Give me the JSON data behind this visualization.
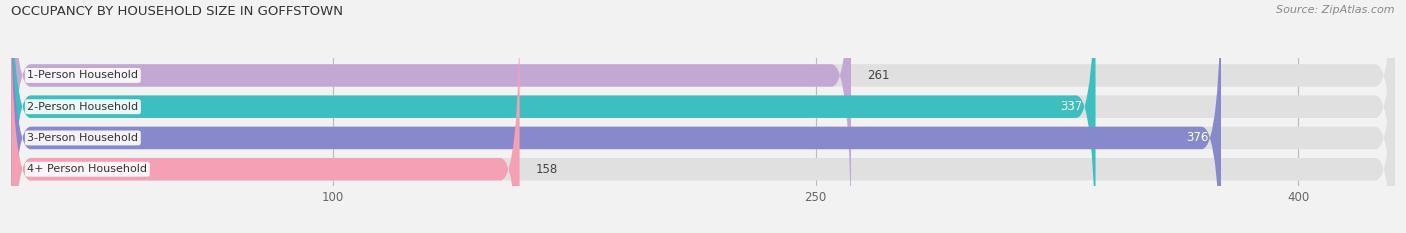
{
  "title": "OCCUPANCY BY HOUSEHOLD SIZE IN GOFFSTOWN",
  "source": "Source: ZipAtlas.com",
  "categories": [
    "1-Person Household",
    "2-Person Household",
    "3-Person Household",
    "4+ Person Household"
  ],
  "values": [
    261,
    337,
    376,
    158
  ],
  "bar_colors": [
    "#c4a8d4",
    "#3dbfbf",
    "#8888cc",
    "#f4a0b5"
  ],
  "label_colors": [
    "#555555",
    "#ffffff",
    "#ffffff",
    "#555555"
  ],
  "background_color": "#f2f2f2",
  "bar_bg_color": "#e0e0e0",
  "xlim_min": 0,
  "xlim_max": 430,
  "xticks": [
    100,
    250,
    400
  ],
  "bar_height": 0.72,
  "figsize": [
    14.06,
    2.33
  ],
  "dpi": 100,
  "title_fontsize": 9.5,
  "source_fontsize": 8,
  "label_fontsize": 8.0,
  "value_fontsize": 8.5
}
